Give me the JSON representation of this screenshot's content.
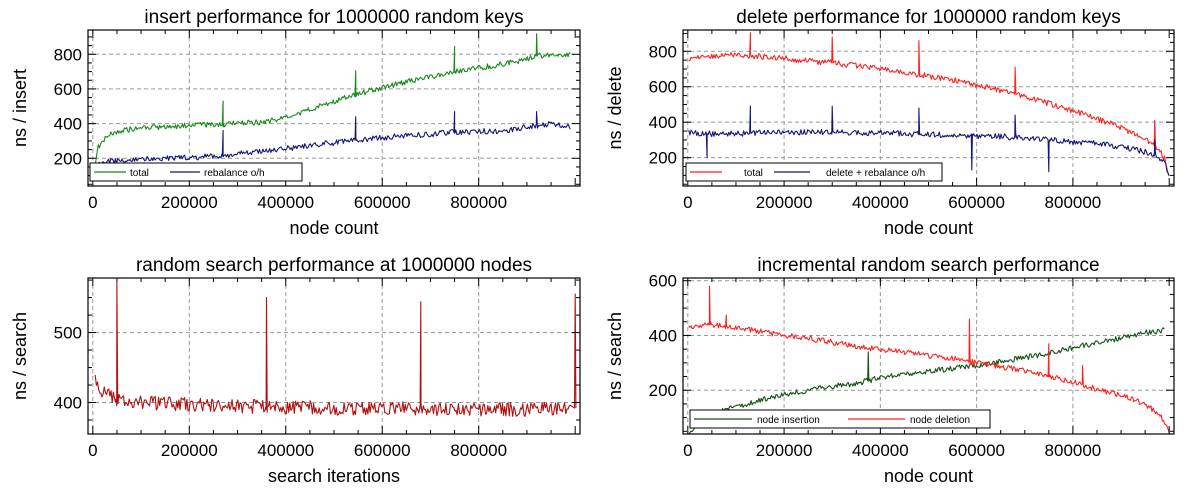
{
  "chart_data": [
    {
      "id": "c1",
      "type": "line",
      "title": "insert performance for 1000000 random keys",
      "xlabel": "node count",
      "ylabel": "ns / insert",
      "xlim": [
        -10000,
        1010000
      ],
      "ylim": [
        40,
        940
      ],
      "xticks": [
        0,
        200000,
        400000,
        600000,
        800000
      ],
      "yticks": [
        200,
        400,
        600,
        800
      ],
      "grid": true,
      "legend": "bottom-left",
      "series": [
        {
          "name": "total",
          "color": "#1a8a1a",
          "x": [
            2000,
            10000,
            30000,
            60000,
            100000,
            150000,
            200000,
            270000,
            300000,
            350000,
            400000,
            450000,
            500000,
            550000,
            600000,
            650000,
            700000,
            750000,
            800000,
            850000,
            900000,
            920000,
            950000,
            990000
          ],
          "y": [
            120,
            260,
            330,
            360,
            375,
            380,
            390,
            395,
            400,
            410,
            430,
            480,
            530,
            570,
            610,
            640,
            670,
            700,
            720,
            745,
            770,
            790,
            800,
            800
          ],
          "spikes": [
            [
              270000,
              530
            ],
            [
              545000,
              705
            ],
            [
              750000,
              845
            ],
            [
              920000,
              918
            ]
          ]
        },
        {
          "name": "rebalance o/h",
          "color": "#15157a",
          "x": [
            2000,
            10000,
            30000,
            60000,
            100000,
            150000,
            200000,
            270000,
            300000,
            350000,
            400000,
            450000,
            500000,
            550000,
            600000,
            650000,
            700000,
            750000,
            800000,
            850000,
            900000,
            950000,
            990000
          ],
          "y": [
            100,
            160,
            180,
            190,
            195,
            200,
            205,
            215,
            225,
            240,
            255,
            275,
            290,
            305,
            320,
            330,
            340,
            350,
            355,
            360,
            380,
            400,
            380
          ],
          "spikes": [
            [
              270000,
              360
            ],
            [
              545000,
              440
            ],
            [
              750000,
              470
            ],
            [
              920000,
              470
            ]
          ]
        }
      ]
    },
    {
      "id": "c2",
      "type": "line",
      "title": "delete performance for 1000000 random keys",
      "xlabel": "node count",
      "ylabel": "ns / delete",
      "xlim": [
        -10000,
        1010000
      ],
      "ylim": [
        40,
        920
      ],
      "xticks": [
        0,
        200000,
        400000,
        600000,
        800000
      ],
      "yticks": [
        200,
        400,
        600,
        800
      ],
      "grid": true,
      "legend": "bottom-left",
      "series": [
        {
          "name": "total",
          "color": "#ff2020",
          "x": [
            2000,
            50000,
            100000,
            150000,
            200000,
            250000,
            300000,
            350000,
            400000,
            450000,
            500000,
            550000,
            600000,
            650000,
            700000,
            750000,
            800000,
            850000,
            900000,
            940000,
            970000,
            990000,
            1000000
          ],
          "y": [
            760,
            775,
            780,
            770,
            760,
            745,
            735,
            720,
            700,
            680,
            660,
            640,
            610,
            580,
            545,
            505,
            465,
            420,
            370,
            320,
            270,
            200,
            100
          ],
          "spikes": [
            [
              130000,
              905
            ],
            [
              300000,
              880
            ],
            [
              480000,
              860
            ],
            [
              680000,
              710
            ],
            [
              970000,
              410
            ]
          ]
        },
        {
          "name": "delete + rebalance o/h",
          "color": "#15157a",
          "x": [
            2000,
            50000,
            100000,
            150000,
            200000,
            250000,
            300000,
            350000,
            400000,
            450000,
            500000,
            550000,
            600000,
            650000,
            700000,
            750000,
            800000,
            850000,
            900000,
            940000,
            970000,
            990000,
            1000000
          ],
          "y": [
            340,
            335,
            335,
            340,
            340,
            345,
            345,
            340,
            340,
            335,
            330,
            330,
            320,
            320,
            310,
            300,
            290,
            280,
            260,
            240,
            220,
            180,
            90
          ],
          "spikes": [
            [
              40000,
              200
            ],
            [
              130000,
              490
            ],
            [
              300000,
              490
            ],
            [
              480000,
              480
            ],
            [
              590000,
              130
            ],
            [
              680000,
              440
            ],
            [
              750000,
              120
            ],
            [
              970000,
              300
            ]
          ]
        }
      ]
    },
    {
      "id": "c3",
      "type": "line",
      "title": "random search performance at 1000000 nodes",
      "xlabel": "search iterations",
      "ylabel": "ns / search",
      "xlim": [
        -10000,
        1010000
      ],
      "ylim": [
        355,
        578
      ],
      "xticks": [
        0,
        200000,
        400000,
        600000,
        800000
      ],
      "yticks": [
        400,
        500
      ],
      "grid": true,
      "legend": "none",
      "series": [
        {
          "name": "",
          "color": "#b01010",
          "x": [
            5000,
            20000,
            50000,
            100000,
            200000,
            300000,
            400000,
            500000,
            600000,
            700000,
            800000,
            900000,
            990000
          ],
          "y": [
            430,
            415,
            405,
            400,
            397,
            395,
            393,
            392,
            392,
            391,
            390,
            390,
            392
          ],
          "spikes": [
            [
              50000,
              572
            ],
            [
              360000,
              550
            ],
            [
              680000,
              544
            ],
            [
              1000000,
              555
            ]
          ]
        }
      ]
    },
    {
      "id": "c4",
      "type": "line",
      "title": "incremental random search performance",
      "xlabel": "node count",
      "ylabel": "ns / search",
      "xlim": [
        -10000,
        1010000
      ],
      "ylim": [
        40,
        610
      ],
      "xticks": [
        0,
        200000,
        400000,
        600000,
        800000
      ],
      "yticks": [
        200,
        400,
        600
      ],
      "grid": true,
      "legend": "bottom-left",
      "series": [
        {
          "name": "node insertion",
          "color": "#145214",
          "x": [
            2000,
            20000,
            50000,
            100000,
            150000,
            200000,
            250000,
            300000,
            350000,
            400000,
            450000,
            500000,
            550000,
            600000,
            650000,
            700000,
            750000,
            800000,
            850000,
            900000,
            950000,
            990000
          ],
          "y": [
            40,
            80,
            110,
            140,
            165,
            185,
            200,
            215,
            225,
            245,
            260,
            270,
            280,
            290,
            305,
            320,
            335,
            355,
            375,
            390,
            410,
            420
          ],
          "spikes": [
            [
              375000,
              340
            ]
          ]
        },
        {
          "name": "node deletion",
          "color": "#ff2020",
          "x": [
            2000,
            50000,
            100000,
            150000,
            200000,
            250000,
            300000,
            350000,
            400000,
            450000,
            500000,
            550000,
            600000,
            650000,
            700000,
            750000,
            800000,
            850000,
            900000,
            950000,
            980000,
            1000000
          ],
          "y": [
            430,
            440,
            430,
            415,
            400,
            390,
            375,
            360,
            350,
            340,
            325,
            315,
            300,
            285,
            270,
            250,
            230,
            205,
            180,
            150,
            110,
            50
          ],
          "spikes": [
            [
              45000,
              580
            ],
            [
              80000,
              475
            ],
            [
              585000,
              460
            ],
            [
              750000,
              370
            ],
            [
              820000,
              290
            ]
          ]
        }
      ]
    }
  ]
}
